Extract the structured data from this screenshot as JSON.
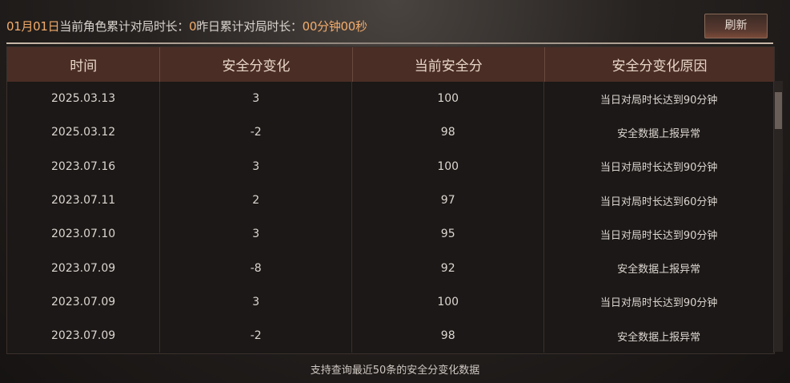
{
  "header": {
    "date": "01月01日",
    "label1": "当前角色累计对局时长：",
    "value1": "0",
    "label2": "昨日累计对局时长：",
    "value2": "00分钟00秒",
    "refresh_label": "刷新"
  },
  "table": {
    "columns": [
      "时间",
      "安全分变化",
      "当前安全分",
      "安全分变化原因"
    ],
    "rows": [
      [
        "2025.03.13",
        "3",
        "100",
        "当日对局时长达到90分钟"
      ],
      [
        "2025.03.12",
        "-2",
        "98",
        "安全数据上报异常"
      ],
      [
        "2023.07.16",
        "3",
        "100",
        "当日对局时长达到90分钟"
      ],
      [
        "2023.07.11",
        "2",
        "97",
        "当日对局时长达到60分钟"
      ],
      [
        "2023.07.10",
        "3",
        "95",
        "当日对局时长达到90分钟"
      ],
      [
        "2023.07.09",
        "-8",
        "92",
        "安全数据上报异常"
      ],
      [
        "2023.07.09",
        "3",
        "100",
        "当日对局时长达到90分钟"
      ],
      [
        "2023.07.09",
        "-2",
        "98",
        "安全数据上报异常"
      ]
    ]
  },
  "footer": "支持查询最近50条的安全分变化数据",
  "colors": {
    "accent": "#f2ac6c",
    "header_bg": "#4a2d25"
  }
}
